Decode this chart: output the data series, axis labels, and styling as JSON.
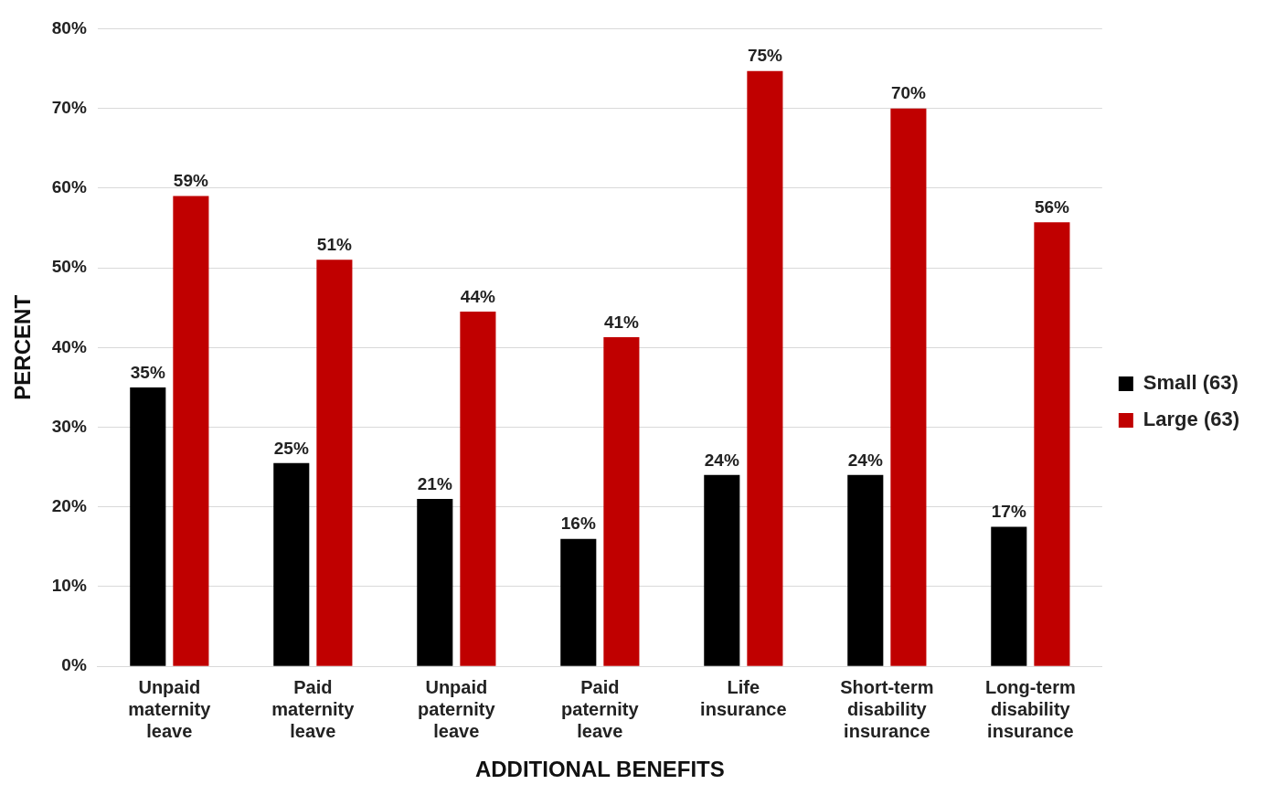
{
  "chart_data": {
    "type": "bar",
    "xlabel": "ADDITIONAL BENEFITS",
    "ylabel": "PERCENT",
    "categories": [
      "Unpaid maternity leave",
      "Paid maternity leave",
      "Unpaid paternity leave",
      "Paid paternity leave",
      "Life insurance",
      "Short-term disability insurance",
      "Long-term disability insurance"
    ],
    "series": [
      {
        "name": "Small (63)",
        "color": "#000000",
        "values": [
          35,
          25.5,
          21,
          16,
          24,
          24,
          17.5
        ],
        "value_labels": [
          "35%",
          "25%",
          "21%",
          "16%",
          "24%",
          "24%",
          "17%"
        ]
      },
      {
        "name": "Large (63)",
        "color": "#c00000",
        "values": [
          59,
          51,
          44.5,
          41.3,
          74.7,
          70,
          55.7
        ],
        "value_labels": [
          "59%",
          "51%",
          "44%",
          "41%",
          "75%",
          "70%",
          "56%"
        ]
      }
    ],
    "ylim": [
      0,
      80
    ],
    "yticks": [
      {
        "value": 0,
        "label": "0%"
      },
      {
        "value": 10,
        "label": "10%"
      },
      {
        "value": 20,
        "label": "20%"
      },
      {
        "value": 30,
        "label": "30%"
      },
      {
        "value": 40,
        "label": "40%"
      },
      {
        "value": 50,
        "label": "50%"
      },
      {
        "value": 60,
        "label": "60%"
      },
      {
        "value": 70,
        "label": "70%"
      },
      {
        "value": 80,
        "label": "80%"
      }
    ],
    "grid": "y",
    "legend": "right"
  }
}
